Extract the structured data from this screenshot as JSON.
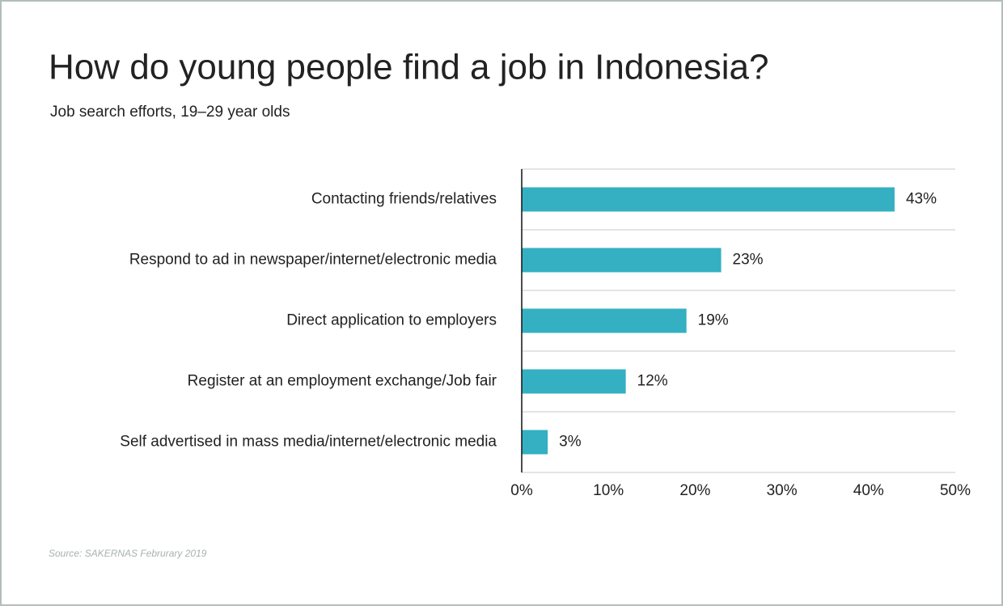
{
  "chart_data": {
    "type": "bar",
    "orientation": "horizontal",
    "title": "How do young people find a job in Indonesia?",
    "subtitle": "Job search efforts, 19–29 year olds",
    "categories": [
      "Contacting friends/relatives",
      "Respond to ad in newspaper/internet/electronic media",
      "Direct application to employers",
      "Register at an employment exchange/Job fair",
      "Self advertised in mass media/internet/electronic media"
    ],
    "values": [
      43,
      23,
      19,
      12,
      3
    ],
    "value_labels": [
      "43%",
      "23%",
      "19%",
      "12%",
      "3%"
    ],
    "color": "#34b0c2",
    "xlim": [
      0,
      50
    ],
    "xticks": [
      {
        "value": 0,
        "label": "0%"
      },
      {
        "value": 10,
        "label": "10%"
      },
      {
        "value": 20,
        "label": "20%"
      },
      {
        "value": 30,
        "label": "30%"
      },
      {
        "value": 40,
        "label": "40%"
      },
      {
        "value": 50,
        "label": "50%"
      }
    ],
    "source": "Source: SAKERNAS Februrary 2019"
  }
}
